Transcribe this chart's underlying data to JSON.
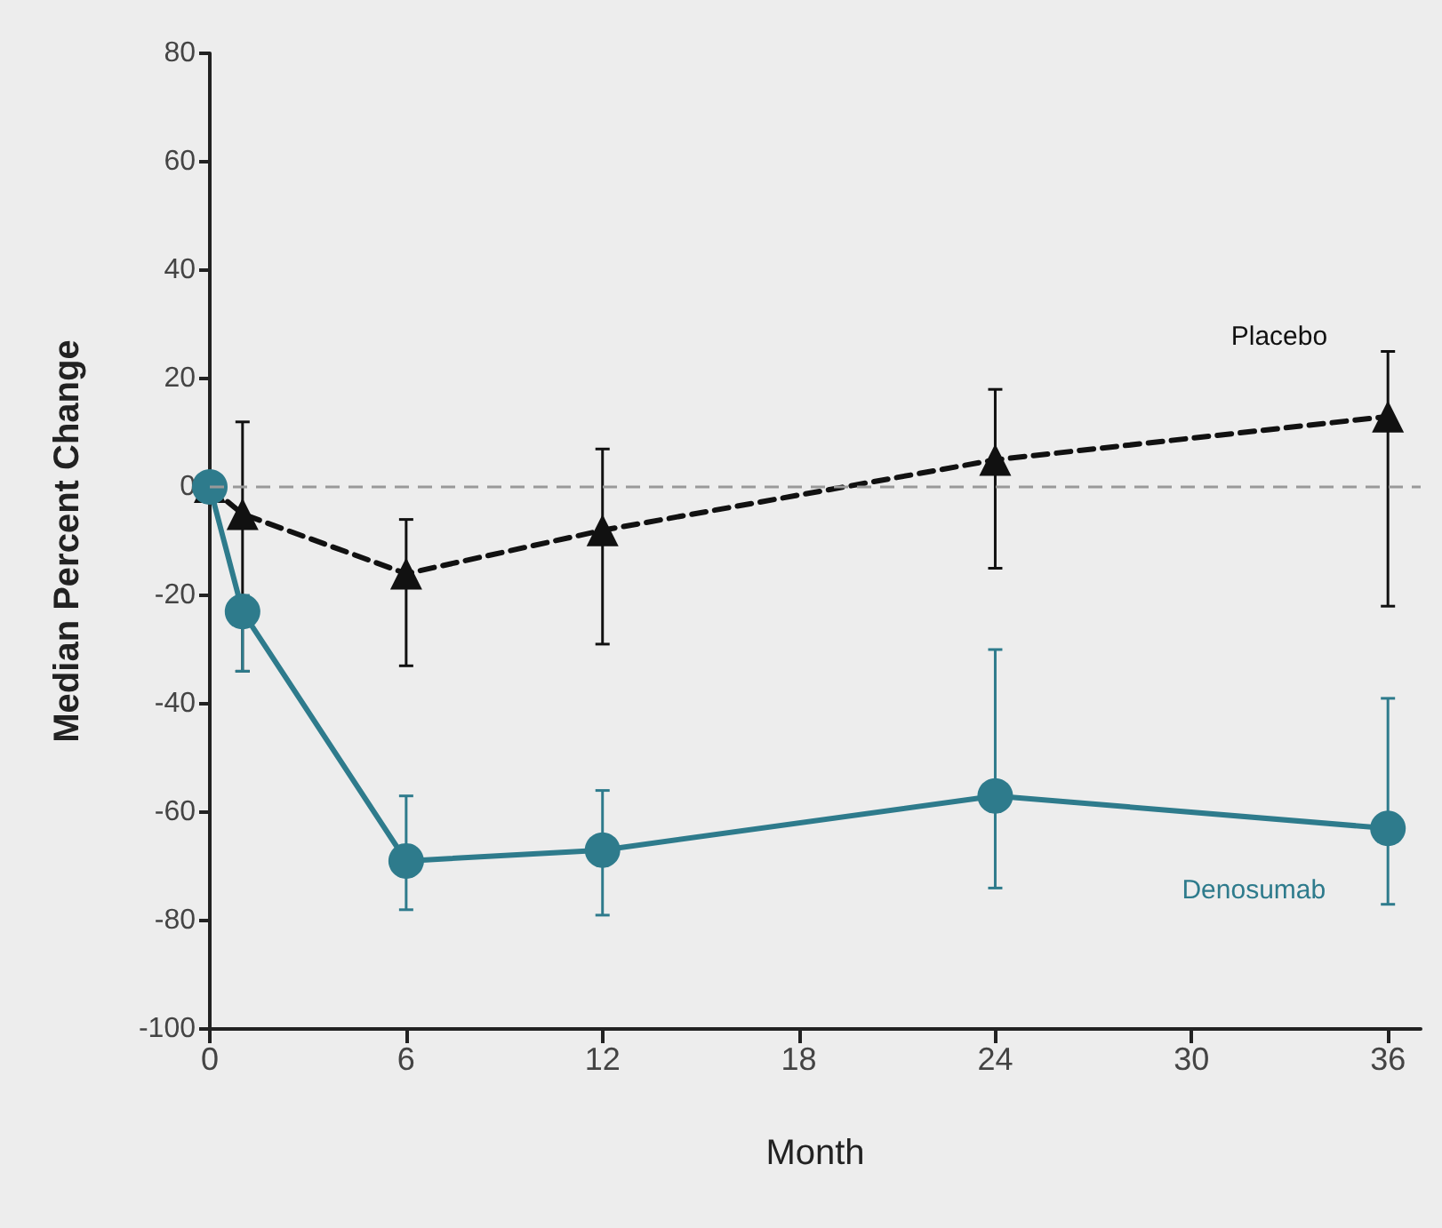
{
  "chart_data": {
    "type": "line",
    "xlabel": "Month",
    "ylabel": "Median Percent Change",
    "xlim": [
      0,
      37
    ],
    "xticks": [
      0,
      6,
      12,
      18,
      24,
      30,
      36
    ],
    "ylim": [
      -100,
      80
    ],
    "yticks": [
      -100,
      -80,
      -60,
      -40,
      -20,
      0,
      20,
      40,
      60,
      80
    ],
    "grid": false,
    "legend": false,
    "ref_lines": [
      {
        "axis": "y",
        "value": 0,
        "label": null,
        "color": "#999999",
        "line_style": "dashed"
      }
    ],
    "series": [
      {
        "name": "Placebo",
        "color": "#111111",
        "marker": "triangle",
        "line_style": "dashed",
        "x": [
          0,
          1,
          6,
          12,
          24,
          36
        ],
        "values": [
          0,
          -5,
          -16,
          -8,
          5,
          13
        ],
        "errors": [
          null,
          [
            -34,
            12
          ],
          [
            -33,
            -6
          ],
          [
            -29,
            7
          ],
          [
            -15,
            18
          ],
          [
            -22,
            25
          ]
        ]
      },
      {
        "name": "Denosumab",
        "color": "#2e7b8c",
        "marker": "circle",
        "line_style": "solid",
        "x": [
          0,
          1,
          6,
          12,
          24,
          36
        ],
        "values": [
          0,
          -23,
          -69,
          -67,
          -57,
          -63
        ],
        "errors": [
          null,
          [
            -34,
            -20
          ],
          [
            -78,
            -57
          ],
          [
            -79,
            -56
          ],
          [
            -74,
            -30
          ],
          [
            -77,
            -39
          ]
        ]
      }
    ]
  }
}
